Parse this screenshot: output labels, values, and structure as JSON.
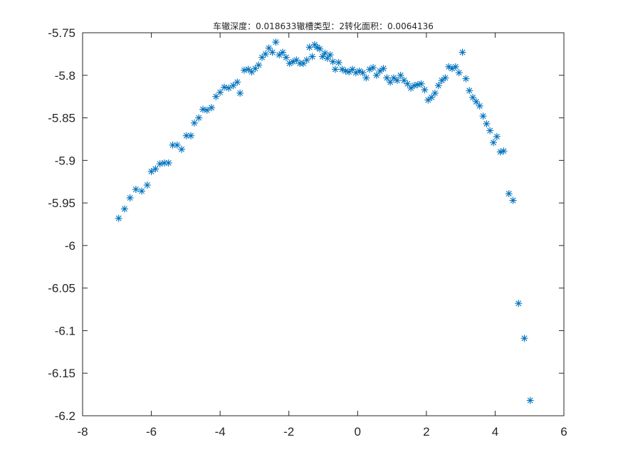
{
  "chart_data": {
    "type": "scatter",
    "title": "车辙深度：0.018633辙槽类型：2转化面积：0.0064136",
    "xlabel": "",
    "ylabel": "",
    "xlim": [
      -8,
      6
    ],
    "ylim": [
      -6.2,
      -5.75
    ],
    "xticks": [
      "-8",
      "-6",
      "-4",
      "-2",
      "0",
      "2",
      "4",
      "6"
    ],
    "yticks": [
      "-5.75",
      "-5.8",
      "-5.85",
      "-5.9",
      "-5.95",
      "-6",
      "-6.05",
      "-6.1",
      "-6.15",
      "-6.2"
    ],
    "grid": false,
    "marker": "asterisk",
    "color": "#0072BD",
    "series": [
      {
        "x": [
          -6.95,
          -6.78,
          -6.62,
          -6.45,
          -6.28,
          -6.12,
          -6.0,
          -5.88,
          -5.75,
          -5.62,
          -5.5,
          -5.38,
          -5.25,
          -5.12,
          -4.98,
          -4.85,
          -4.75,
          -4.62,
          -4.5,
          -4.38,
          -4.25,
          -4.12,
          -4.0,
          -3.88,
          -3.75,
          -3.62,
          -3.5,
          -3.42,
          -3.3,
          -3.18,
          -3.08,
          -2.98,
          -2.88,
          -2.78,
          -2.68,
          -2.58,
          -2.48,
          -2.38,
          -2.28,
          -2.18,
          -2.08,
          -1.98,
          -1.88,
          -1.78,
          -1.68,
          -1.58,
          -1.48,
          -1.4,
          -1.32,
          -1.25,
          -1.18,
          -1.1,
          -1.02,
          -0.95,
          -0.88,
          -0.8,
          -0.72,
          -0.65,
          -0.55,
          -0.45,
          -0.35,
          -0.25,
          -0.15,
          -0.05,
          0.05,
          0.15,
          0.25,
          0.35,
          0.45,
          0.55,
          0.65,
          0.75,
          0.85,
          0.95,
          1.05,
          1.15,
          1.25,
          1.35,
          1.45,
          1.55,
          1.65,
          1.75,
          1.85,
          1.95,
          2.05,
          2.15,
          2.25,
          2.35,
          2.45,
          2.55,
          2.65,
          2.75,
          2.85,
          2.95,
          3.05,
          3.15,
          3.25,
          3.35,
          3.45,
          3.55,
          3.65,
          3.75,
          3.85,
          3.95,
          4.05,
          4.15,
          4.25,
          4.4,
          4.52,
          4.68,
          4.85,
          5.02
        ],
        "y": [
          -5.968,
          -5.957,
          -5.944,
          -5.934,
          -5.936,
          -5.929,
          -5.913,
          -5.91,
          -5.904,
          -5.903,
          -5.903,
          -5.882,
          -5.882,
          -5.887,
          -5.871,
          -5.871,
          -5.856,
          -5.85,
          -5.84,
          -5.841,
          -5.838,
          -5.825,
          -5.82,
          -5.814,
          -5.815,
          -5.812,
          -5.808,
          -5.821,
          -5.794,
          -5.793,
          -5.796,
          -5.792,
          -5.788,
          -5.779,
          -5.775,
          -5.768,
          -5.773,
          -5.761,
          -5.776,
          -5.773,
          -5.779,
          -5.786,
          -5.784,
          -5.782,
          -5.786,
          -5.786,
          -5.782,
          -5.767,
          -5.778,
          -5.764,
          -5.767,
          -5.769,
          -5.778,
          -5.774,
          -5.78,
          -5.776,
          -5.784,
          -5.793,
          -5.785,
          -5.793,
          -5.795,
          -5.796,
          -5.793,
          -5.797,
          -5.795,
          -5.797,
          -5.803,
          -5.793,
          -5.791,
          -5.8,
          -5.795,
          -5.792,
          -5.803,
          -5.808,
          -5.803,
          -5.806,
          -5.8,
          -5.806,
          -5.81,
          -5.815,
          -5.812,
          -5.811,
          -5.81,
          -5.817,
          -5.829,
          -5.826,
          -5.821,
          -5.812,
          -5.806,
          -5.803,
          -5.79,
          -5.792,
          -5.79,
          -5.797,
          -5.773,
          -5.804,
          -5.818,
          -5.826,
          -5.831,
          -5.836,
          -5.848,
          -5.857,
          -5.865,
          -5.879,
          -5.872,
          -5.89,
          -5.889,
          -5.939,
          -5.947,
          -6.068,
          -6.109,
          -6.182
        ]
      }
    ]
  }
}
